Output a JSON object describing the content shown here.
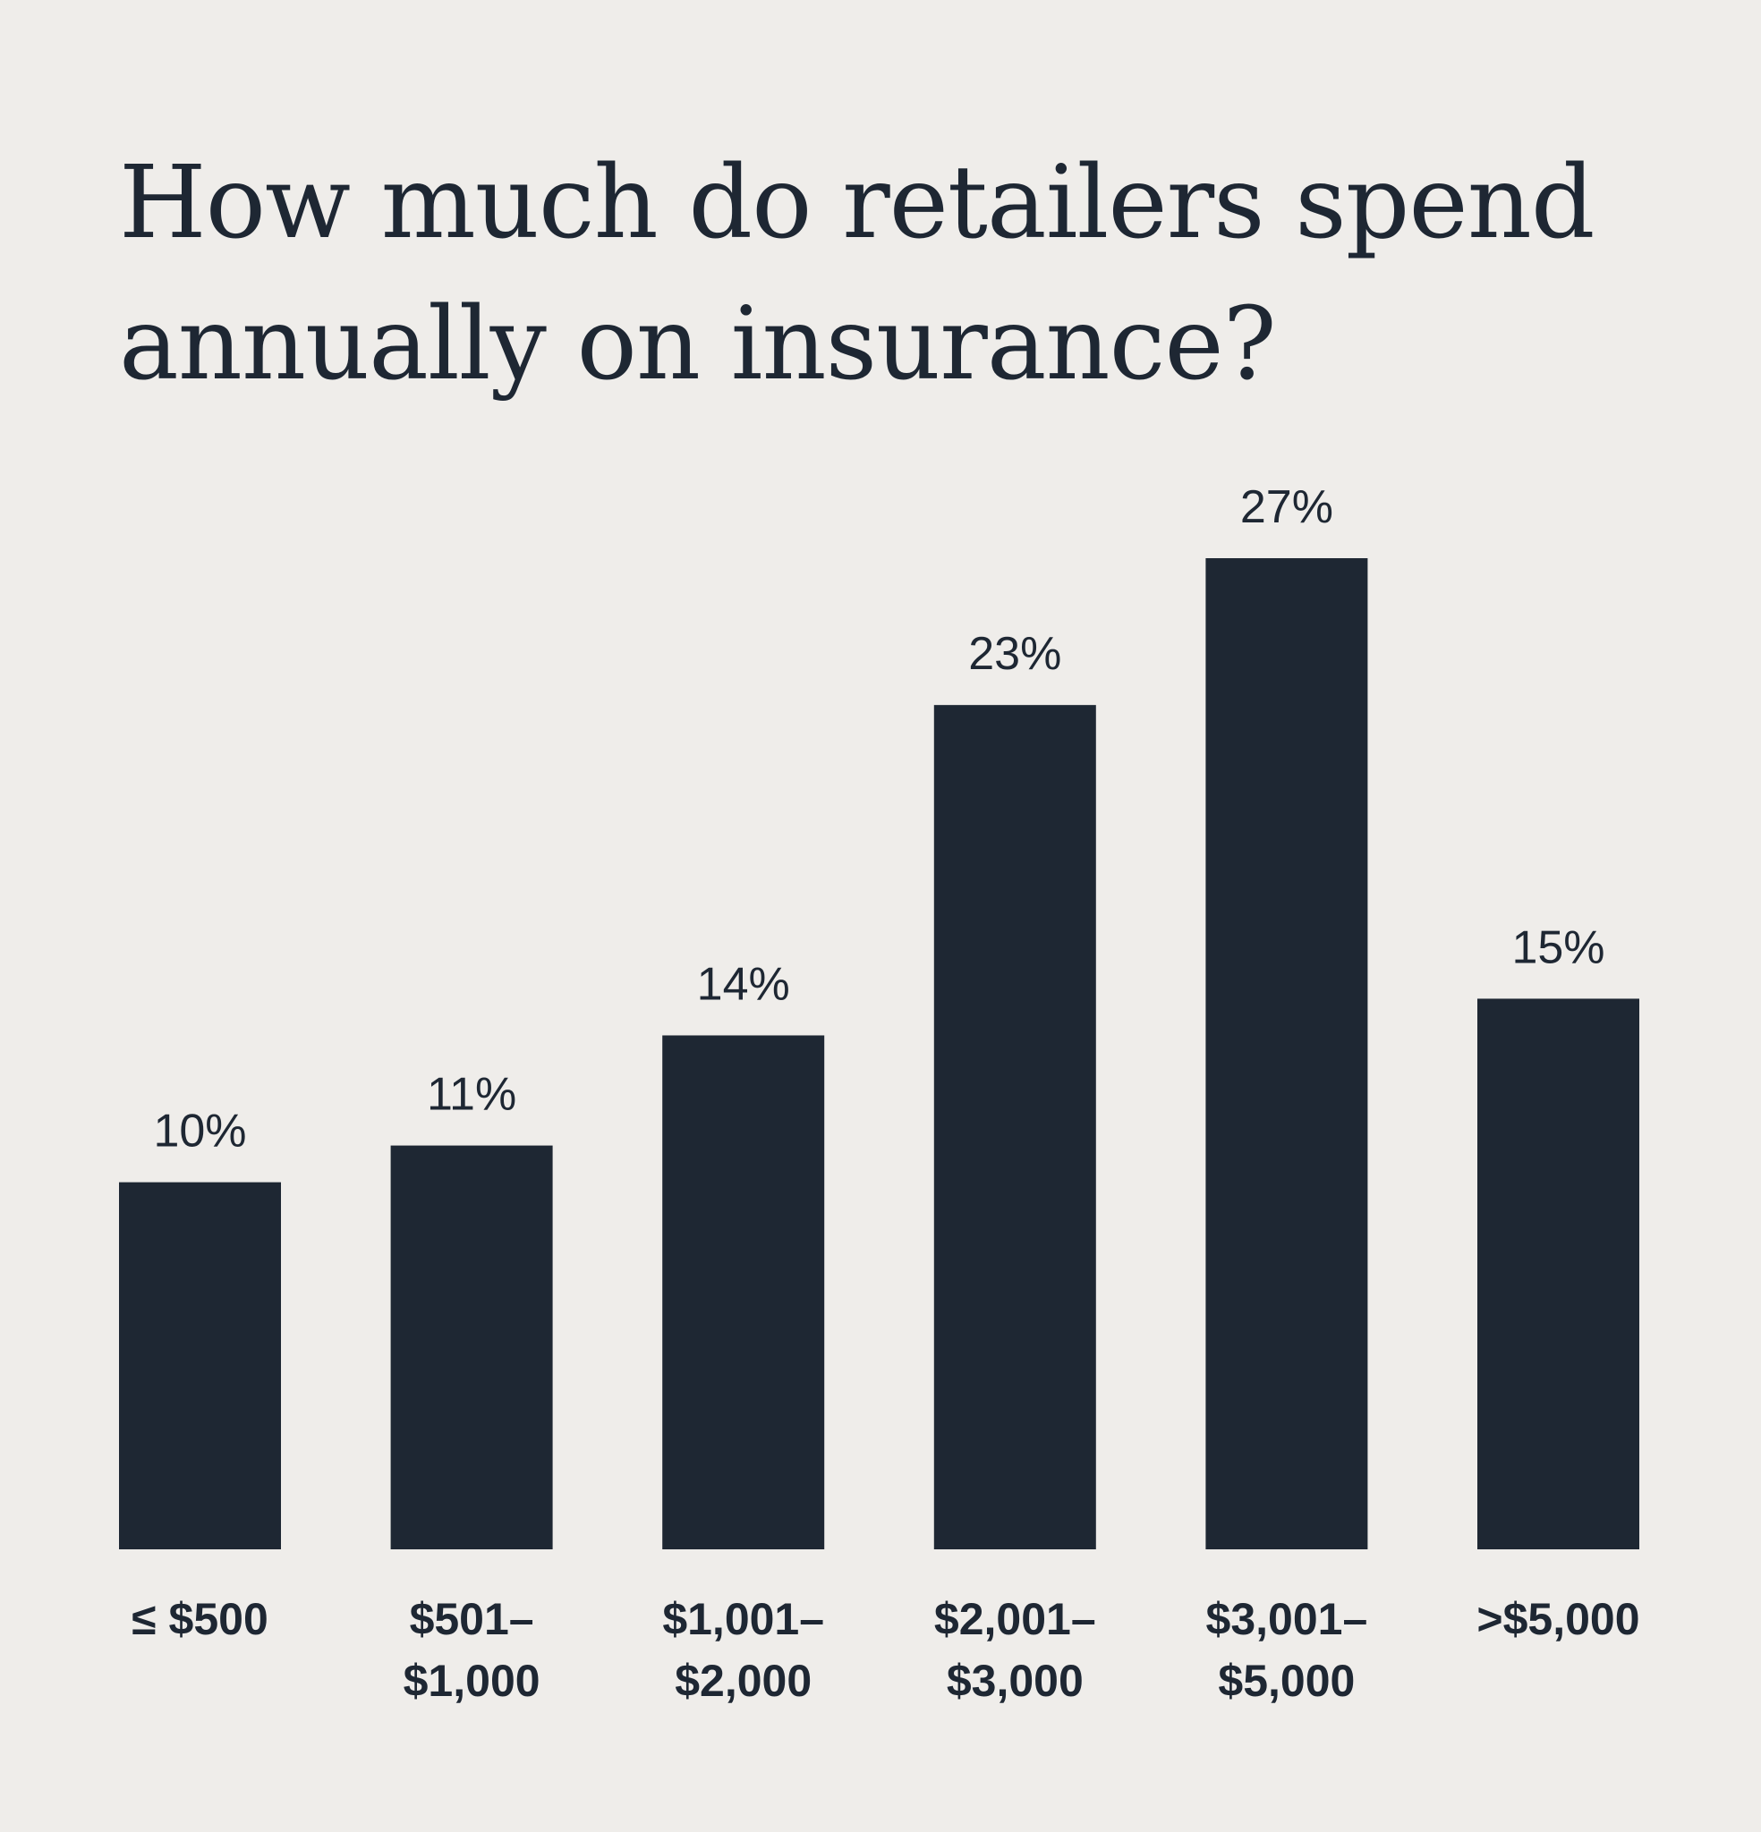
{
  "title_lines": [
    "How much do retailers spend",
    "annually on insurance?"
  ],
  "colors": {
    "bar": "#1e2733",
    "text": "#1e2733",
    "background": "#efedea"
  },
  "chart_data": {
    "type": "bar",
    "title": "How much do retailers spend annually on insurance?",
    "xlabel": "",
    "ylabel": "",
    "categories": [
      [
        "≤ $500"
      ],
      [
        "$501–",
        "$1,000"
      ],
      [
        "$1,001–",
        "$2,000"
      ],
      [
        "$2,001–",
        "$3,000"
      ],
      [
        "$3,001–",
        "$5,000"
      ],
      [
        ">$5,000"
      ]
    ],
    "values": [
      10,
      11,
      14,
      23,
      27,
      15
    ],
    "value_labels": [
      "10%",
      "11%",
      "14%",
      "23%",
      "27%",
      "15%"
    ],
    "unit": "%",
    "ylim": [
      0,
      27
    ],
    "grid": false,
    "legend": "none"
  }
}
